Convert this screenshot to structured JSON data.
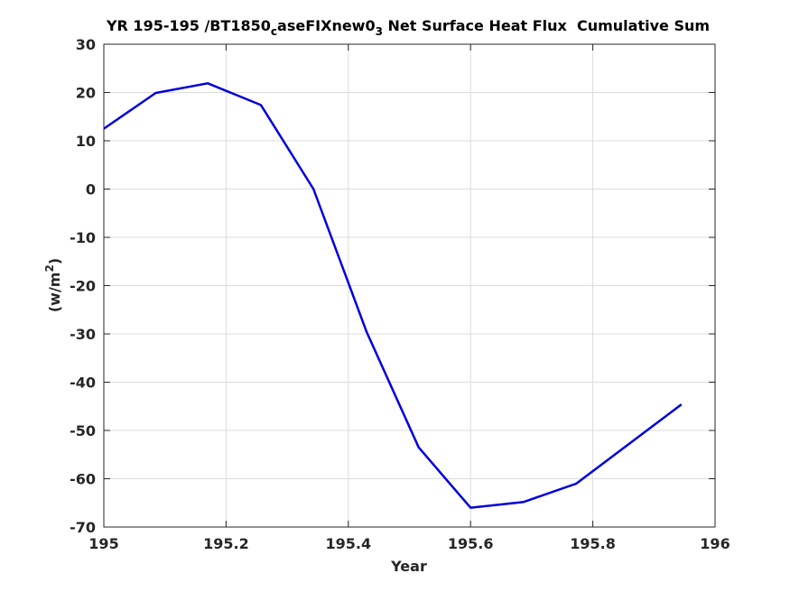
{
  "chart_data": {
    "type": "line",
    "title_parts": {
      "main": "YR 195-195 /BT1850",
      "sub1": "c",
      "mid": "aseFIXnew0",
      "sub2": "3",
      "tail": " Net Surface Heat Flux  Cumulative Sum"
    },
    "xlabel": "Year",
    "ylabel_parts": {
      "base": "(w/m",
      "sup": "2",
      "close": ")"
    },
    "xlim": [
      195,
      196
    ],
    "ylim": [
      -70,
      30
    ],
    "xticks": [
      195,
      195.2,
      195.4,
      195.6,
      195.8,
      196
    ],
    "xtick_labels": [
      "195",
      "195.2",
      "195.4",
      "195.6",
      "195.8",
      "196"
    ],
    "yticks": [
      30,
      20,
      10,
      0,
      -10,
      -20,
      -30,
      -40,
      -50,
      -60,
      -70
    ],
    "ytick_labels": [
      "30",
      "20",
      "10",
      "0",
      "-10",
      "-20",
      "-30",
      "-40",
      "-50",
      "-60",
      "-70"
    ],
    "grid": true,
    "series": [
      {
        "color": "#0000dd",
        "x": [
          195.0,
          195.085,
          195.17,
          195.257,
          195.343,
          195.43,
          195.515,
          195.6,
          195.687,
          195.773,
          195.945
        ],
        "y": [
          12.5,
          19.9,
          21.9,
          17.4,
          0.0,
          -29.6,
          -53.5,
          -66.0,
          -64.8,
          -61.0,
          -44.6
        ]
      }
    ]
  }
}
